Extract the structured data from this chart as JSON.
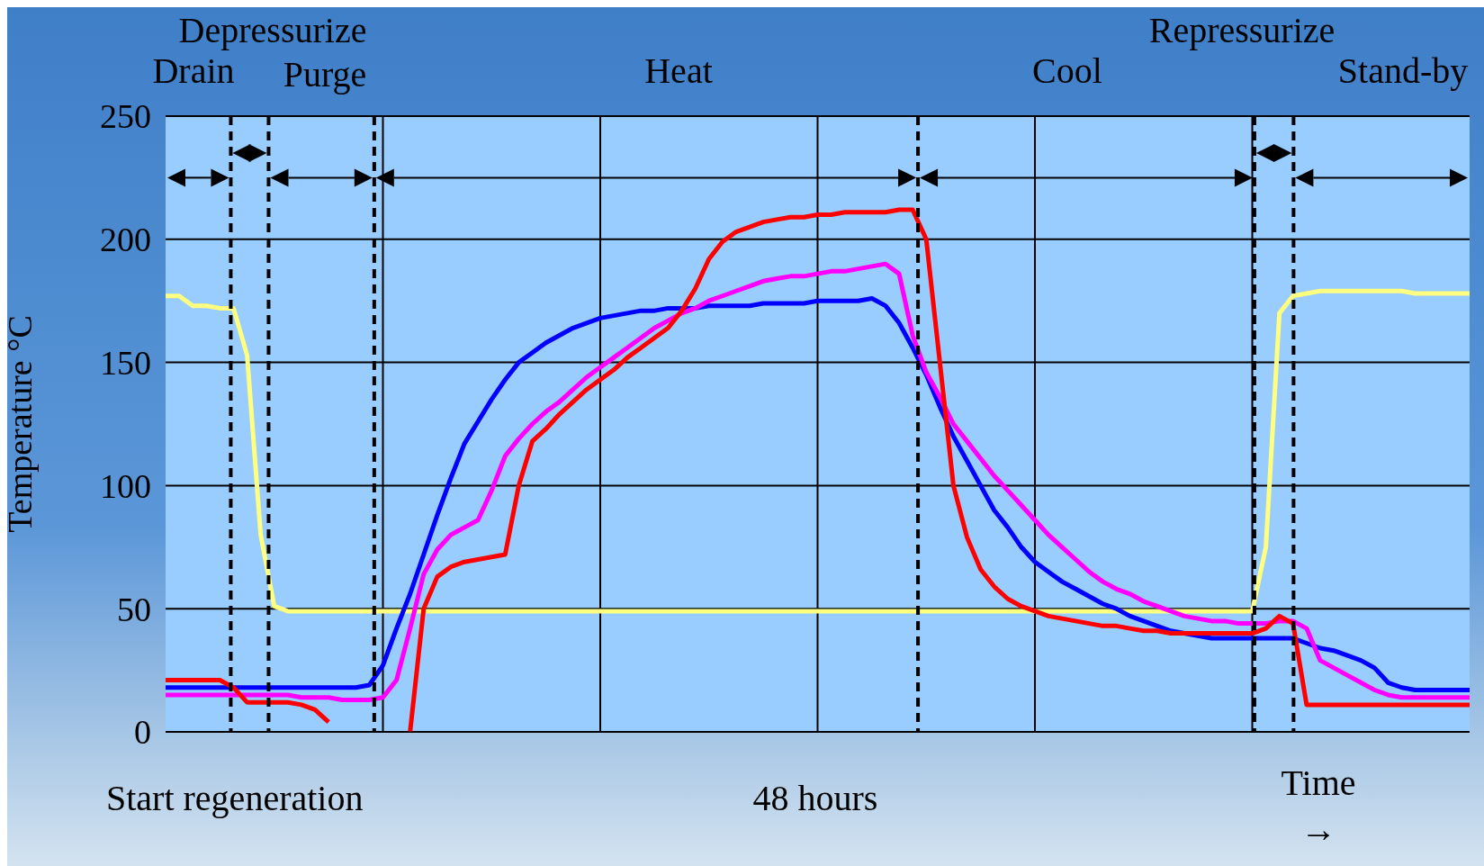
{
  "chart_data": {
    "type": "line",
    "ylabel": "Temperature °C",
    "annotations": [
      "Depressurize",
      "Drain",
      "Purge",
      "Heat",
      "Repressurize",
      "Cool",
      "Stand-by",
      "Start regeneration",
      "48 hours",
      "Time →"
    ],
    "categories": [
      null,
      null,
      null,
      null,
      null,
      null,
      null,
      null,
      null,
      null,
      null,
      null,
      null,
      null,
      null,
      null,
      null,
      null,
      null,
      null,
      null,
      null,
      null,
      null,
      null,
      null,
      null,
      null,
      null,
      null,
      null,
      null,
      null,
      null,
      null,
      null,
      null,
      null,
      null,
      null,
      null,
      null,
      null,
      null,
      null,
      null,
      null,
      null,
      null,
      null,
      null,
      null,
      null,
      null,
      null,
      null,
      null,
      null,
      null,
      null,
      null,
      null,
      null,
      null,
      null,
      null,
      null,
      null,
      null,
      null,
      null,
      null,
      null,
      null,
      null,
      null,
      null,
      null,
      null,
      null,
      null,
      null,
      null,
      null,
      null,
      null,
      null,
      null,
      null,
      null,
      null,
      null,
      null,
      null,
      null,
      null,
      null
    ],
    "ylim": [
      0,
      250
    ],
    "yticks": [
      0,
      50,
      100,
      150,
      200,
      250
    ],
    "grid": true,
    "tick_labels": "y",
    "series": [
      {
        "color": "#ffff80",
        "values": [
          177,
          177,
          173,
          173,
          172,
          172,
          153,
          80,
          51,
          49,
          49,
          49,
          49,
          49,
          49,
          49,
          49,
          49,
          49,
          49,
          49,
          49,
          49,
          49,
          49,
          49,
          49,
          49,
          49,
          49,
          49,
          49,
          49,
          49,
          49,
          49,
          49,
          49,
          49,
          49,
          49,
          49,
          49,
          49,
          49,
          49,
          49,
          49,
          49,
          49,
          49,
          49,
          49,
          49,
          49,
          49,
          49,
          49,
          49,
          49,
          49,
          49,
          49,
          49,
          49,
          49,
          49,
          49,
          49,
          49,
          49,
          49,
          49,
          49,
          49,
          49,
          49,
          49,
          49,
          49,
          49,
          75,
          170,
          177,
          178,
          179,
          179,
          179,
          179,
          179,
          179,
          179,
          178,
          178,
          178,
          178,
          178
        ]
      },
      {
        "color": "#0000ff",
        "values": [
          18,
          18,
          18,
          18,
          18,
          18,
          18,
          18,
          18,
          18,
          18,
          18,
          18,
          18,
          18,
          19,
          27,
          42,
          56,
          72,
          88,
          103,
          117,
          126,
          135,
          143,
          150,
          154,
          158,
          161,
          164,
          166,
          168,
          169,
          170,
          171,
          171,
          172,
          172,
          172,
          173,
          173,
          173,
          173,
          174,
          174,
          174,
          174,
          175,
          175,
          175,
          175,
          176,
          173,
          166,
          156,
          145,
          132,
          120,
          110,
          100,
          90,
          83,
          75,
          69,
          65,
          61,
          58,
          55,
          52,
          50,
          47,
          45,
          43,
          41,
          40,
          39,
          38,
          38,
          38,
          38,
          38,
          38,
          38,
          36,
          34,
          33,
          31,
          29,
          26,
          20,
          18,
          17,
          17,
          17,
          17,
          17
        ]
      },
      {
        "color": "#ff00ff",
        "values": [
          15,
          15,
          15,
          15,
          15,
          15,
          15,
          15,
          15,
          15,
          14,
          14,
          14,
          13,
          13,
          13,
          14,
          21,
          42,
          64,
          74,
          80,
          83,
          86,
          98,
          112,
          119,
          125,
          130,
          134,
          139,
          144,
          148,
          152,
          156,
          160,
          164,
          167,
          170,
          172,
          175,
          177,
          179,
          181,
          183,
          184,
          185,
          185,
          186,
          187,
          187,
          188,
          189,
          190,
          186,
          161,
          146,
          136,
          125,
          118,
          111,
          104,
          98,
          92,
          86,
          80,
          75,
          70,
          65,
          61,
          58,
          56,
          53,
          51,
          49,
          47,
          46,
          45,
          45,
          44,
          44,
          44,
          45,
          45,
          42,
          29,
          26,
          23,
          20,
          17,
          15,
          14,
          14,
          14,
          14,
          14,
          14
        ]
      },
      {
        "color": "#ff0000",
        "values": [
          21,
          21,
          21,
          21,
          21,
          18,
          12,
          12,
          12,
          12,
          11,
          9,
          4,
          null,
          null,
          null,
          null,
          null,
          0,
          50,
          63,
          67,
          69,
          70,
          71,
          72,
          100,
          118,
          123,
          129,
          134,
          139,
          143,
          147,
          152,
          156,
          160,
          164,
          171,
          180,
          192,
          199,
          203,
          205,
          207,
          208,
          209,
          209,
          210,
          210,
          211,
          211,
          211,
          211,
          212,
          212,
          200,
          150,
          100,
          79,
          66,
          59,
          54,
          51,
          49,
          47,
          46,
          45,
          44,
          43,
          43,
          42,
          41,
          41,
          40,
          40,
          40,
          40,
          40,
          40,
          40,
          42,
          47,
          44,
          11,
          11,
          11,
          11,
          11,
          11,
          11,
          11,
          11,
          11,
          11,
          11,
          11
        ]
      }
    ]
  }
}
